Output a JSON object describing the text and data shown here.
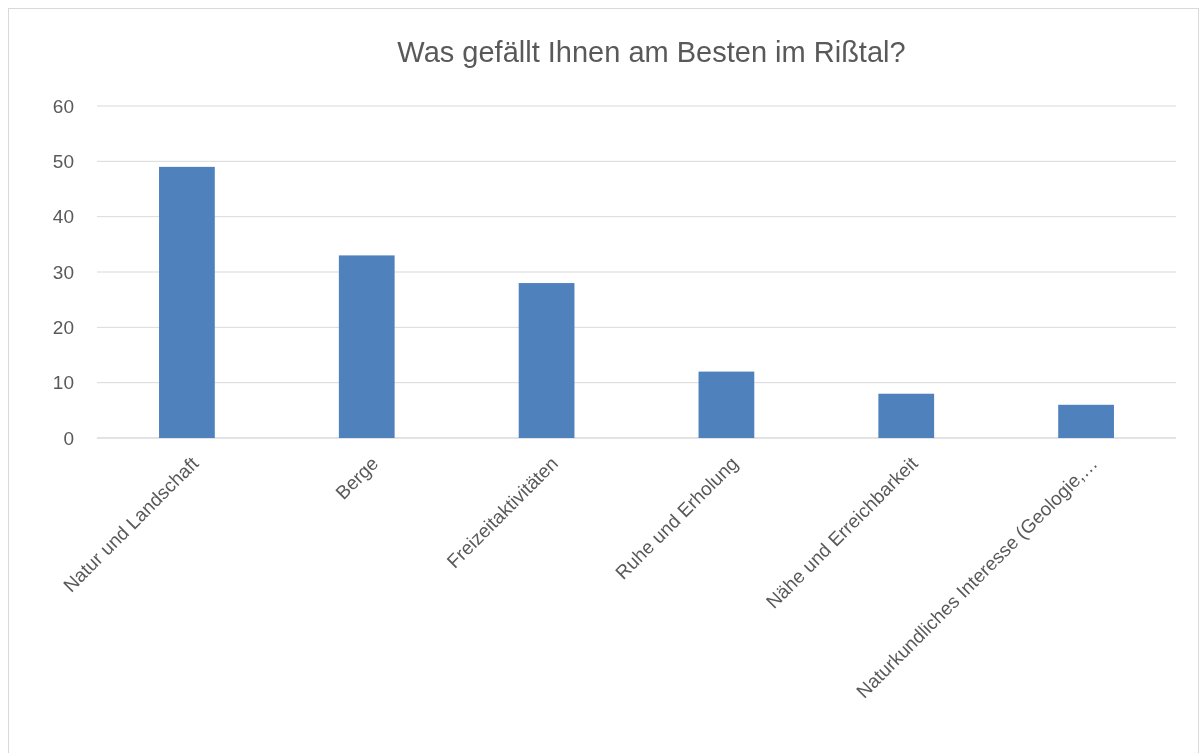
{
  "chart_data": {
    "type": "bar",
    "title": "Was gefällt Ihnen am Besten im Rißtal?",
    "categories": [
      "Natur und Landschaft",
      "Berge",
      "Freizeitaktivitäten",
      "Ruhe und Erholung",
      "Nähe und Erreichbarkeit",
      "Naturkundliches Interesse (Geologie,…"
    ],
    "values": [
      49,
      33,
      28,
      12,
      8,
      6
    ],
    "color": "#4f81bd",
    "ylim": [
      0,
      60
    ],
    "yticks": [
      0,
      10,
      20,
      30,
      40,
      50,
      60
    ],
    "grid": "y"
  }
}
